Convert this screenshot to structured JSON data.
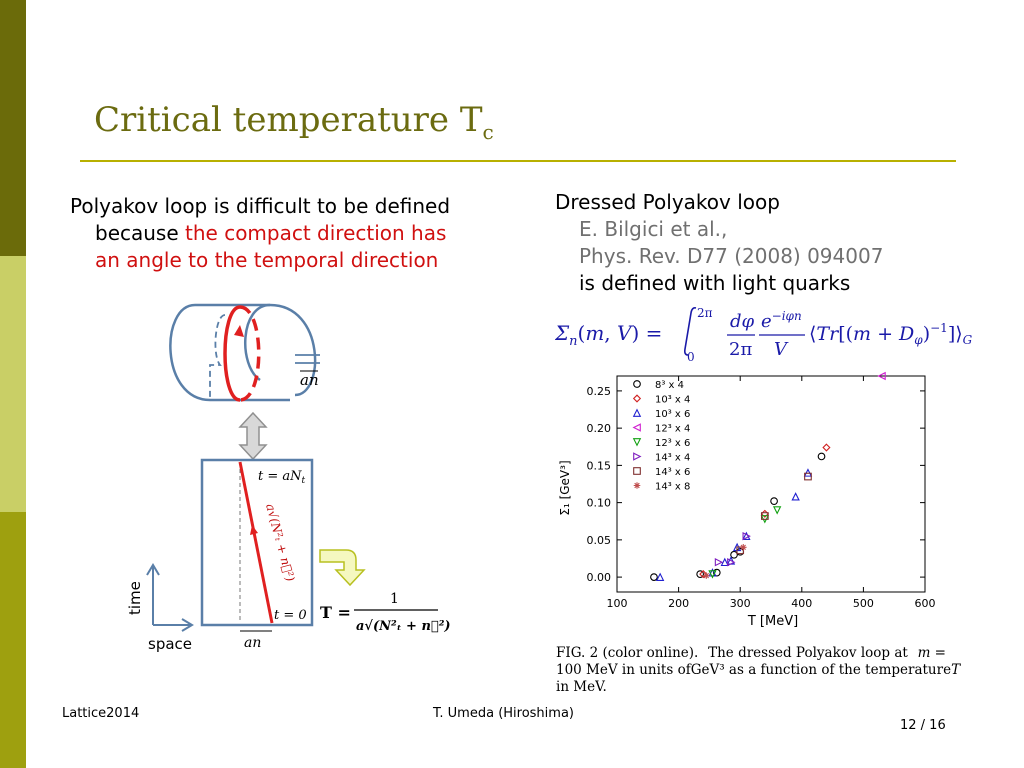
{
  "slide": {
    "title_main": "Critical temperature T",
    "title_sub": "c",
    "left": {
      "line1": "Polyakov loop is difficult to be defined",
      "line2_black": "because ",
      "line2_red": "the compact direction has",
      "line3_red": "an angle to the temporal direction"
    },
    "right": {
      "heading": "Dressed Polyakov loop",
      "ref1": "E. Bilgici et al.,",
      "ref2": "Phys. Rev. D77 (2008) 094007",
      "note": "is defined with light quarks"
    },
    "diagram": {
      "label_an_top": "an",
      "label_t_aNt": "t = aN",
      "label_t_sub": "t",
      "label_sqrt": "a√(N²ₜ + n⃗²)",
      "label_t0": "t = 0",
      "label_time": "time",
      "label_space": "space",
      "label_an_bottom": "an",
      "label_T_eq": "T =",
      "label_num": "1",
      "label_den": "a√(N²ₜ + n⃗²)"
    },
    "caption": {
      "line1a": "FIG. 2 (color online).",
      "line1b": "The dressed Polyakov loop at",
      "line1c": "m =",
      "line2a": "100 MeV in units of",
      "line2b": "GeV³ as a function of the temperature",
      "line2c": "T",
      "line3": "in MeV."
    },
    "footer": {
      "left": "Lattice2014",
      "center": "T. Umeda (Hiroshima)",
      "page": "12 / 16"
    },
    "colors": {
      "sidebar_dark": "#6b6b0a",
      "sidebar_light": "#c9cf66",
      "sidebar_mid": "#9ea00f",
      "title": "#6b6b10",
      "rule": "#b8b000",
      "highlight_red": "#d01010",
      "formula_blue": "#1a1aa8"
    }
  },
  "chart_data": {
    "type": "scatter",
    "xlabel": "T [MeV]",
    "ylabel": "Σ₁ [GeV³]",
    "xlim": [
      100,
      600
    ],
    "ylim": [
      -0.02,
      0.27
    ],
    "xticks": [
      100,
      200,
      300,
      400,
      500,
      600
    ],
    "yticks": [
      0.0,
      0.05,
      0.1,
      0.15,
      0.2,
      0.25
    ],
    "ytick_labels": [
      "0.00",
      "0.05",
      "0.10",
      "0.15",
      "0.20",
      "0.25"
    ],
    "legend_position": "top-left",
    "series": [
      {
        "name": "8³ x 4",
        "marker": "circle",
        "color": "#000000",
        "x": [
          160,
          235,
          262,
          290,
          300,
          355,
          432
        ],
        "y": [
          0.0,
          0.004,
          0.006,
          0.03,
          0.034,
          0.102,
          0.162
        ]
      },
      {
        "name": "10³ x 4",
        "marker": "diamond",
        "color": "#d02020",
        "x": [
          240,
          340,
          440
        ],
        "y": [
          0.004,
          0.085,
          0.174
        ]
      },
      {
        "name": "10³ x 6",
        "marker": "triangle-up",
        "color": "#2020d0",
        "x": [
          170,
          255,
          275,
          285,
          295,
          310,
          390,
          410
        ],
        "y": [
          0.0,
          0.006,
          0.02,
          0.022,
          0.04,
          0.055,
          0.108,
          0.14
        ]
      },
      {
        "name": "12³ x 4",
        "marker": "triangle-left",
        "color": "#d020d0",
        "x": [
          530
        ],
        "y": [
          0.27
        ]
      },
      {
        "name": "12³ x 6",
        "marker": "triangle-down",
        "color": "#10a010",
        "x": [
          255,
          340,
          360
        ],
        "y": [
          0.004,
          0.078,
          0.09
        ]
      },
      {
        "name": "14³ x 4",
        "marker": "triangle-right",
        "color": "#8020c0",
        "x": [
          265,
          285,
          310
        ],
        "y": [
          0.02,
          0.02,
          0.055
        ]
      },
      {
        "name": "14³ x 6",
        "marker": "square",
        "color": "#803030",
        "x": [
          300,
          340,
          410
        ],
        "y": [
          0.036,
          0.082,
          0.135
        ]
      },
      {
        "name": "14³ x 8",
        "marker": "asterisk",
        "color": "#c05050",
        "x": [
          245,
          305
        ],
        "y": [
          0.002,
          0.04
        ]
      }
    ]
  }
}
